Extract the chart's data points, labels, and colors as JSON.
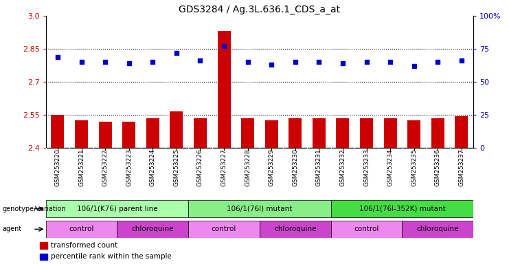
{
  "title": "GDS3284 / Ag.3L.636.1_CDS_a_at",
  "samples": [
    "GSM253220",
    "GSM253221",
    "GSM253222",
    "GSM253223",
    "GSM253224",
    "GSM253225",
    "GSM253226",
    "GSM253227",
    "GSM253228",
    "GSM253229",
    "GSM253230",
    "GSM253231",
    "GSM253232",
    "GSM253233",
    "GSM253234",
    "GSM253235",
    "GSM253236",
    "GSM253237"
  ],
  "bar_values": [
    2.55,
    2.525,
    2.52,
    2.52,
    2.535,
    2.565,
    2.535,
    2.93,
    2.535,
    2.525,
    2.535,
    2.535,
    2.535,
    2.535,
    2.535,
    2.525,
    2.535,
    2.545
  ],
  "dot_values": [
    69,
    65,
    65,
    64,
    65,
    72,
    66,
    77,
    65,
    63,
    65,
    65,
    64,
    65,
    65,
    62,
    65,
    66
  ],
  "bar_color": "#cc0000",
  "dot_color": "#0000cc",
  "ylim_left": [
    2.4,
    3.0
  ],
  "ylim_right": [
    0,
    100
  ],
  "yticks_left": [
    2.4,
    2.55,
    2.7,
    2.85,
    3.0
  ],
  "yticks_right": [
    0,
    25,
    50,
    75,
    100
  ],
  "hlines": [
    2.55,
    2.7,
    2.85
  ],
  "genotype_groups": [
    {
      "label": "106/1(K76) parent line",
      "start": 0,
      "end": 6,
      "color": "#aaffaa"
    },
    {
      "label": "106/1(76I) mutant",
      "start": 6,
      "end": 12,
      "color": "#88ee88"
    },
    {
      "label": "106/1(76I-352K) mutant",
      "start": 12,
      "end": 18,
      "color": "#44dd44"
    }
  ],
  "agent_groups": [
    {
      "label": "control",
      "start": 0,
      "end": 3,
      "color": "#ee88ee"
    },
    {
      "label": "chloroquine",
      "start": 3,
      "end": 6,
      "color": "#cc44cc"
    },
    {
      "label": "control",
      "start": 6,
      "end": 9,
      "color": "#ee88ee"
    },
    {
      "label": "chloroquine",
      "start": 9,
      "end": 12,
      "color": "#cc44cc"
    },
    {
      "label": "control",
      "start": 12,
      "end": 15,
      "color": "#ee88ee"
    },
    {
      "label": "chloroquine",
      "start": 15,
      "end": 18,
      "color": "#cc44cc"
    }
  ],
  "legend_items": [
    {
      "color": "#cc0000",
      "label": "transformed count"
    },
    {
      "color": "#0000cc",
      "label": "percentile rank within the sample"
    }
  ],
  "bar_width": 0.55,
  "xtick_bg": "#dddddd"
}
